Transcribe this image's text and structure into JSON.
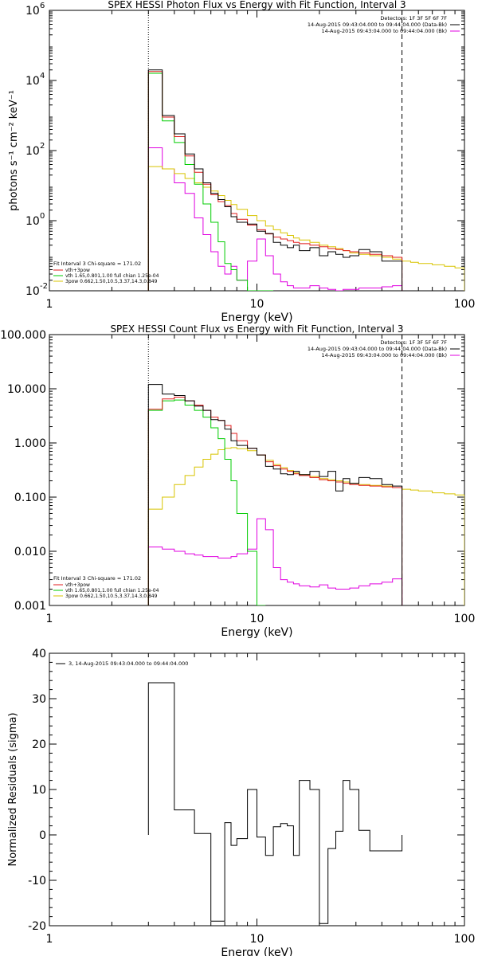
{
  "colors": {
    "data": "#000000",
    "total": "#e01c1c",
    "thermal": "#00cc00",
    "powerlaw": "#d8c400",
    "background": "#e000e0",
    "threshold": "#000000"
  },
  "chart_data": [
    {
      "type": "line",
      "title": "SPEX HESSI Photon Flux vs Energy with Fit Function, Interval 3",
      "xlabel": "Energy (keV)",
      "ylabel": "photons s⁻¹ cm⁻² keV⁻¹",
      "xscale": "log",
      "yscale": "log",
      "xlim": [
        1,
        100
      ],
      "ylim": [
        0.01,
        1000000
      ],
      "xticks": [
        {
          "v": 1,
          "t": "1"
        },
        {
          "v": 10,
          "t": "10"
        },
        {
          "v": 100,
          "t": "100"
        }
      ],
      "yticks": [
        {
          "v": 0.01,
          "t": "10",
          "e": "-2"
        },
        {
          "v": 1,
          "t": "10",
          "e": "0"
        },
        {
          "v": 100,
          "t": "10",
          "e": "2"
        },
        {
          "v": 10000,
          "t": "10",
          "e": "4"
        },
        {
          "v": 1000000,
          "t": "10",
          "e": "6"
        }
      ],
      "vlines": [
        {
          "x": 3,
          "style": "dotted"
        },
        {
          "x": 50,
          "style": "dashed"
        }
      ],
      "legend_top_right": [
        "Detectors: 1F 3F 5F 6F 7F",
        "14-Aug-2015 09:43:04.000 to 09:44:04.000 (Data-Bk)",
        "14-Aug-2015 09:43:04.000 to 09:44:04.000 (Bk)"
      ],
      "legend_top_right_series": [
        null,
        "data",
        "background"
      ],
      "fit_label": "Fit Interval 3   Chi-square = 171.02",
      "legend_bottom_left": [
        {
          "label": "vth+3pow",
          "series": "total"
        },
        {
          "label": "vth 1.65,0.801,1.00  full chian 1.25e-04",
          "series": "thermal"
        },
        {
          "label": "3pow 0.662,1.50,10.5,3.37,14.3,0.849",
          "series": "powerlaw"
        }
      ],
      "series": [
        {
          "key": "data",
          "step": true,
          "edges": [
            3,
            3.5,
            4,
            4.5,
            5,
            5.5,
            6,
            6.5,
            7,
            7.5,
            8,
            9,
            10,
            11,
            12,
            13,
            14,
            15,
            16,
            18,
            20,
            22,
            24,
            26,
            28,
            31,
            35,
            40,
            45,
            50
          ],
          "values": [
            20000,
            1000,
            300,
            80,
            30,
            12,
            6,
            4,
            2.5,
            1.3,
            0.9,
            0.8,
            0.5,
            0.43,
            0.24,
            0.2,
            0.17,
            0.2,
            0.14,
            0.17,
            0.1,
            0.13,
            0.11,
            0.09,
            0.1,
            0.15,
            0.13,
            0.07,
            0.07
          ]
        },
        {
          "key": "total",
          "step": true,
          "edges": [
            3,
            3.5,
            4,
            4.5,
            5,
            5.5,
            6,
            6.5,
            7,
            7.5,
            8,
            9,
            10,
            11,
            12,
            13,
            14,
            15,
            16,
            18,
            20,
            22,
            24,
            26,
            28,
            31,
            35,
            40,
            45,
            50
          ],
          "values": [
            18000,
            900,
            250,
            70,
            24,
            11,
            5.5,
            3.5,
            2.7,
            1.6,
            1.1,
            0.75,
            0.55,
            0.42,
            0.34,
            0.3,
            0.27,
            0.24,
            0.22,
            0.2,
            0.18,
            0.16,
            0.15,
            0.14,
            0.13,
            0.12,
            0.11,
            0.1,
            0.09
          ]
        },
        {
          "key": "thermal",
          "step": true,
          "edges": [
            3,
            3.5,
            4,
            4.5,
            5,
            5.5,
            6,
            6.5,
            7,
            7.5,
            8,
            9,
            10,
            11,
            12
          ],
          "values": [
            16000,
            700,
            170,
            40,
            11,
            3,
            0.9,
            0.25,
            0.06,
            0.04,
            0.02,
            0.01,
            0.01,
            0.01
          ]
        },
        {
          "key": "powerlaw",
          "step": true,
          "edges": [
            3,
            3.5,
            4,
            4.5,
            5,
            5.5,
            6,
            6.5,
            7,
            7.5,
            8,
            9,
            10,
            11,
            12,
            13,
            14,
            15,
            16,
            18,
            20,
            22,
            24,
            26,
            28,
            31,
            35,
            40,
            45,
            50,
            55,
            60,
            70,
            80,
            90,
            100
          ],
          "values": [
            35,
            30,
            22,
            16,
            12,
            9,
            7,
            5.2,
            3.8,
            2.9,
            2.1,
            1.4,
            1.0,
            0.7,
            0.55,
            0.45,
            0.38,
            0.32,
            0.28,
            0.24,
            0.2,
            0.18,
            0.16,
            0.14,
            0.12,
            0.11,
            0.1,
            0.09,
            0.08,
            0.07,
            0.065,
            0.06,
            0.055,
            0.05,
            0.045
          ]
        },
        {
          "key": "background",
          "step": true,
          "edges": [
            3,
            3.5,
            4,
            4.5,
            5,
            5.5,
            6,
            6.5,
            7,
            7.5,
            8,
            9,
            10,
            11,
            12,
            13,
            14,
            15,
            16,
            18,
            20,
            22,
            24,
            26,
            28,
            31,
            35,
            40,
            45,
            50
          ],
          "values": [
            120,
            30,
            12,
            6,
            1.2,
            0.4,
            0.13,
            0.05,
            0.03,
            0.05,
            0.02,
            0.07,
            0.3,
            0.1,
            0.03,
            0.018,
            0.014,
            0.012,
            0.012,
            0.014,
            0.012,
            0.011,
            0.01,
            0.011,
            0.011,
            0.012,
            0.012,
            0.013,
            0.014
          ]
        }
      ]
    },
    {
      "type": "line",
      "title": "SPEX HESSI Count Flux vs Energy with Fit Function, Interval 3",
      "xlabel": "Energy (keV)",
      "ylabel": "",
      "xscale": "log",
      "yscale": "log",
      "xlim": [
        1,
        100
      ],
      "ylim": [
        0.001,
        100
      ],
      "xticks": [
        {
          "v": 1,
          "t": "1"
        },
        {
          "v": 10,
          "t": "10"
        },
        {
          "v": 100,
          "t": "100"
        }
      ],
      "yticks": [
        {
          "v": 0.001,
          "t": "0.001"
        },
        {
          "v": 0.01,
          "t": "0.010"
        },
        {
          "v": 0.1,
          "t": "0.100"
        },
        {
          "v": 1,
          "t": "1.000"
        },
        {
          "v": 10,
          "t": "10.000"
        },
        {
          "v": 100,
          "t": "100.000"
        }
      ],
      "vlines": [
        {
          "x": 3,
          "style": "dotted"
        },
        {
          "x": 50,
          "style": "dashed"
        }
      ],
      "legend_top_right": [
        "Detectors: 1F 3F 5F 6F 7F",
        "14-Aug-2015 09:43:04.000 to 09:44:04.000 (Data-Bk)",
        "14-Aug-2015 09:43:04.000 to 09:44:04.000 (Bk)"
      ],
      "legend_top_right_series": [
        null,
        "data",
        "background"
      ],
      "fit_label": "Fit Interval 3   Chi-square = 171.02",
      "legend_bottom_left": [
        {
          "label": "vth+3pow",
          "series": "total"
        },
        {
          "label": "vth 1.65,0.801,1.00  full chian 1.25e-04",
          "series": "thermal"
        },
        {
          "label": "3pow 0.662,1.50,10.5,3.37,14.3,0.849",
          "series": "powerlaw"
        }
      ],
      "series": [
        {
          "key": "data",
          "step": true,
          "edges": [
            3,
            3.5,
            4,
            4.5,
            5,
            5.5,
            6,
            6.5,
            7,
            7.5,
            8,
            9,
            10,
            11,
            12,
            13,
            14,
            15,
            16,
            18,
            20,
            22,
            24,
            26,
            28,
            31,
            35,
            40,
            45,
            50
          ],
          "values": [
            12,
            8,
            7.5,
            6,
            4.8,
            4,
            2.7,
            2.6,
            1.8,
            1.1,
            0.9,
            0.8,
            0.6,
            0.37,
            0.33,
            0.27,
            0.26,
            0.3,
            0.26,
            0.3,
            0.24,
            0.3,
            0.13,
            0.22,
            0.18,
            0.23,
            0.22,
            0.17,
            0.16
          ]
        },
        {
          "key": "total",
          "step": true,
          "edges": [
            3,
            3.5,
            4,
            4.5,
            5,
            5.5,
            6,
            6.5,
            7,
            7.5,
            8,
            9,
            10,
            11,
            12,
            13,
            14,
            15,
            16,
            18,
            20,
            22,
            24,
            26,
            28,
            31,
            35,
            40,
            45,
            50
          ],
          "values": [
            4.2,
            6.5,
            7,
            6,
            5,
            4,
            3,
            2.6,
            2.1,
            1.5,
            1.1,
            0.8,
            0.6,
            0.45,
            0.38,
            0.33,
            0.3,
            0.27,
            0.25,
            0.23,
            0.21,
            0.2,
            0.19,
            0.18,
            0.17,
            0.165,
            0.16,
            0.155,
            0.15
          ]
        },
        {
          "key": "thermal",
          "step": true,
          "edges": [
            3,
            3.5,
            4,
            4.5,
            5,
            5.5,
            6,
            6.5,
            7,
            7.5,
            8,
            9,
            10,
            11
          ],
          "values": [
            4,
            6,
            6.2,
            5,
            4,
            3,
            1.9,
            1.2,
            0.5,
            0.2,
            0.05,
            0.01,
            0.001
          ]
        },
        {
          "key": "powerlaw",
          "step": true,
          "edges": [
            3,
            3.5,
            4,
            4.5,
            5,
            5.5,
            6,
            6.5,
            7,
            7.5,
            8,
            9,
            10,
            11,
            12,
            13,
            14,
            15,
            16,
            18,
            20,
            22,
            24,
            26,
            28,
            31,
            35,
            40,
            45,
            50,
            55,
            60,
            70,
            80,
            90,
            100
          ],
          "values": [
            0.06,
            0.1,
            0.17,
            0.25,
            0.36,
            0.5,
            0.62,
            0.75,
            0.8,
            0.82,
            0.78,
            0.72,
            0.6,
            0.48,
            0.4,
            0.35,
            0.31,
            0.28,
            0.26,
            0.24,
            0.22,
            0.21,
            0.2,
            0.19,
            0.18,
            0.17,
            0.165,
            0.16,
            0.15,
            0.14,
            0.135,
            0.13,
            0.12,
            0.115,
            0.11
          ]
        },
        {
          "key": "background",
          "step": true,
          "edges": [
            3,
            3.5,
            4,
            4.5,
            5,
            5.5,
            6,
            6.5,
            7,
            7.5,
            8,
            9,
            10,
            11,
            12,
            13,
            14,
            15,
            16,
            18,
            20,
            22,
            24,
            26,
            28,
            31,
            35,
            40,
            45,
            50
          ],
          "values": [
            0.012,
            0.011,
            0.01,
            0.009,
            0.0085,
            0.008,
            0.008,
            0.0075,
            0.0075,
            0.008,
            0.009,
            0.011,
            0.04,
            0.025,
            0.005,
            0.003,
            0.0027,
            0.0025,
            0.0023,
            0.0022,
            0.0024,
            0.0021,
            0.002,
            0.002,
            0.0021,
            0.0023,
            0.0025,
            0.0027,
            0.0031
          ]
        }
      ]
    },
    {
      "type": "line",
      "title": "",
      "xlabel": "Energy (keV)",
      "ylabel": "Normalized Residuals (sigma)",
      "xscale": "log",
      "yscale": "linear",
      "xlim": [
        1,
        100
      ],
      "ylim": [
        -20,
        40
      ],
      "xticks": [
        {
          "v": 1,
          "t": "1"
        },
        {
          "v": 10,
          "t": "10"
        },
        {
          "v": 100,
          "t": "100"
        }
      ],
      "yticks": [
        {
          "v": -20,
          "t": "-20"
        },
        {
          "v": -10,
          "t": "-10"
        },
        {
          "v": 0,
          "t": "0"
        },
        {
          "v": 10,
          "t": "10"
        },
        {
          "v": 20,
          "t": "20"
        },
        {
          "v": 30,
          "t": "30"
        },
        {
          "v": 40,
          "t": "40"
        }
      ],
      "vlines": [],
      "legend_top_left": "3, 14-Aug-2015 09:43:04.000 to 09:44:04.000",
      "series": [
        {
          "key": "data",
          "step": true,
          "edges": [
            3,
            4,
            5,
            6,
            7,
            7.5,
            8,
            9,
            10,
            11,
            12,
            13,
            14,
            15,
            16,
            18,
            20,
            22,
            24,
            26,
            28,
            31,
            35,
            40,
            45,
            50
          ],
          "values": [
            33.5,
            5.5,
            0.3,
            -19,
            2.7,
            -2.3,
            -0.8,
            10,
            -0.5,
            -4.5,
            1.8,
            2.5,
            2,
            -4.5,
            12,
            10,
            -19.5,
            -3,
            0.8,
            12,
            10,
            1,
            -3.5,
            -3.5,
            -3.5
          ]
        }
      ]
    }
  ]
}
